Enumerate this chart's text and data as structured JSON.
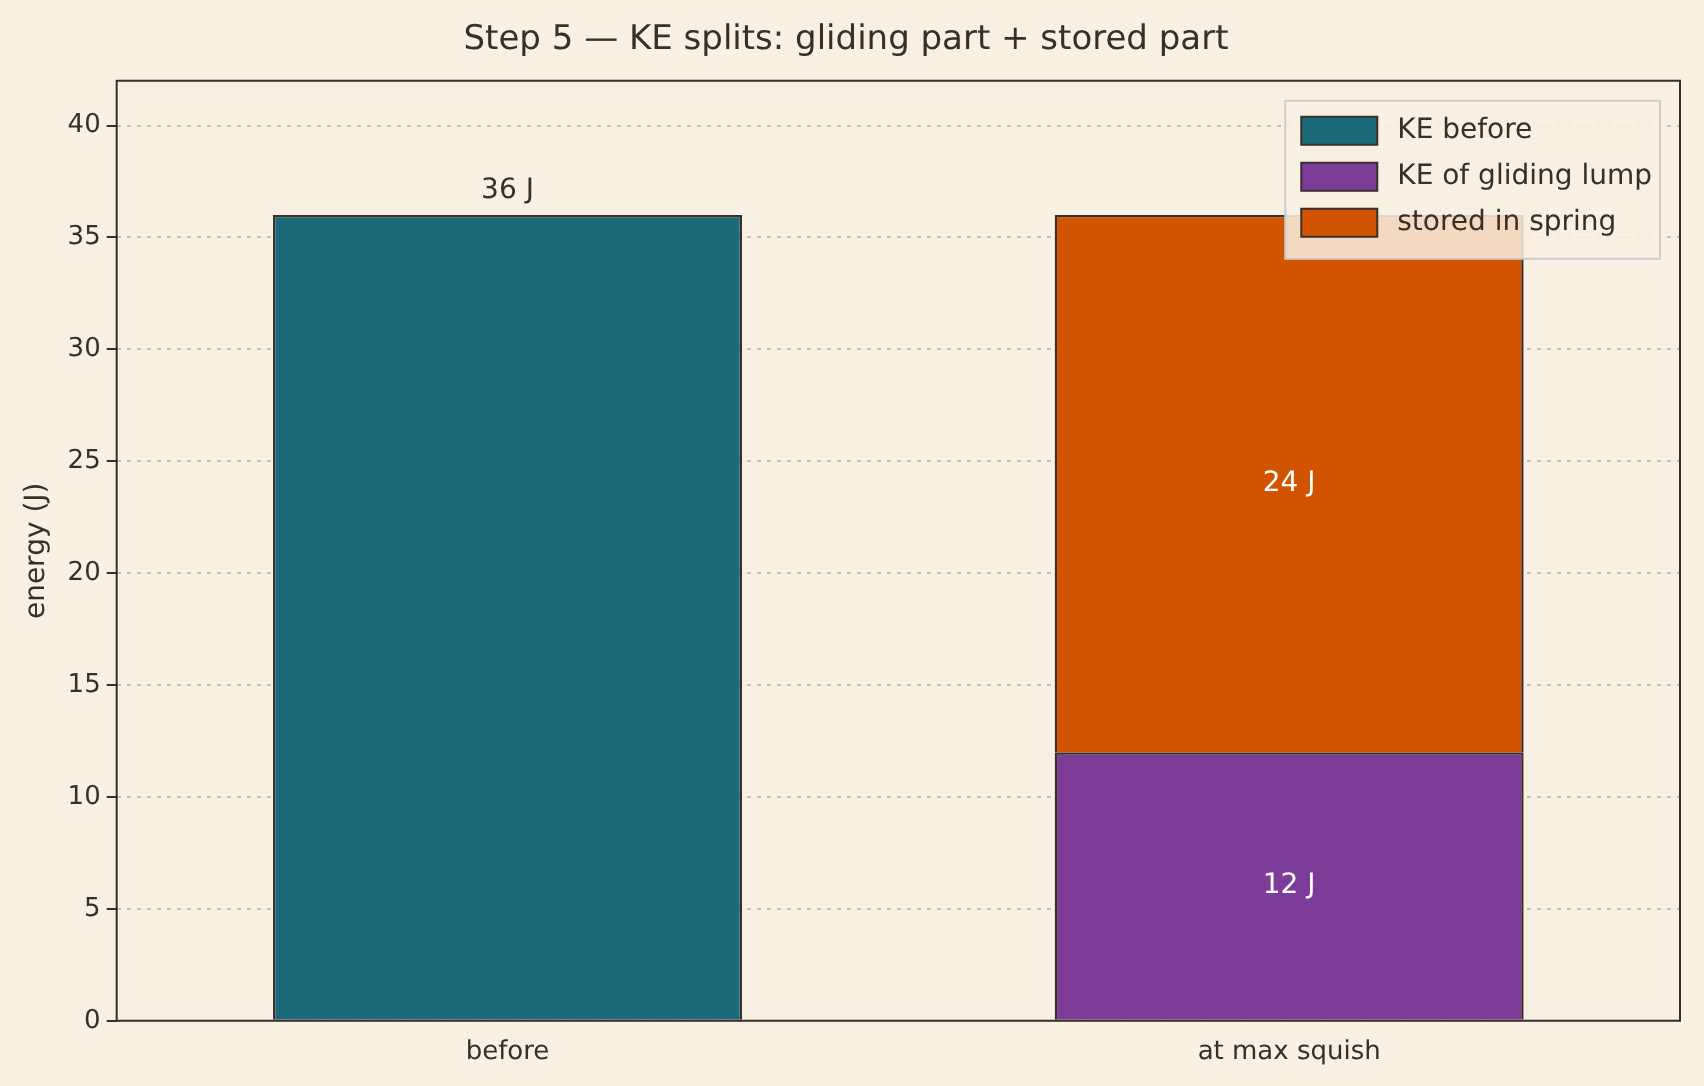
{
  "chart_data": {
    "type": "bar",
    "title": "Step 5 — KE splits: gliding part + stored part",
    "ylabel": "energy (J)",
    "categories": [
      "before",
      "at max squish"
    ],
    "stacked": true,
    "series": [
      {
        "name": "KE before",
        "color": "#1b6a7a",
        "values": [
          36,
          null
        ],
        "value_labels": [
          "36 J",
          null
        ]
      },
      {
        "name": "KE of gliding lump",
        "color": "#7d3c98",
        "values": [
          null,
          12
        ],
        "value_labels": [
          null,
          "12 J"
        ]
      },
      {
        "name": "stored in spring",
        "color": "#d35400",
        "values": [
          null,
          24
        ],
        "value_labels": [
          null,
          "24 J"
        ]
      }
    ],
    "ylim": [
      0,
      42
    ],
    "yticks": [
      0,
      5,
      10,
      15,
      20,
      25,
      30,
      35,
      40
    ],
    "grid": "y",
    "legend": "top right"
  }
}
